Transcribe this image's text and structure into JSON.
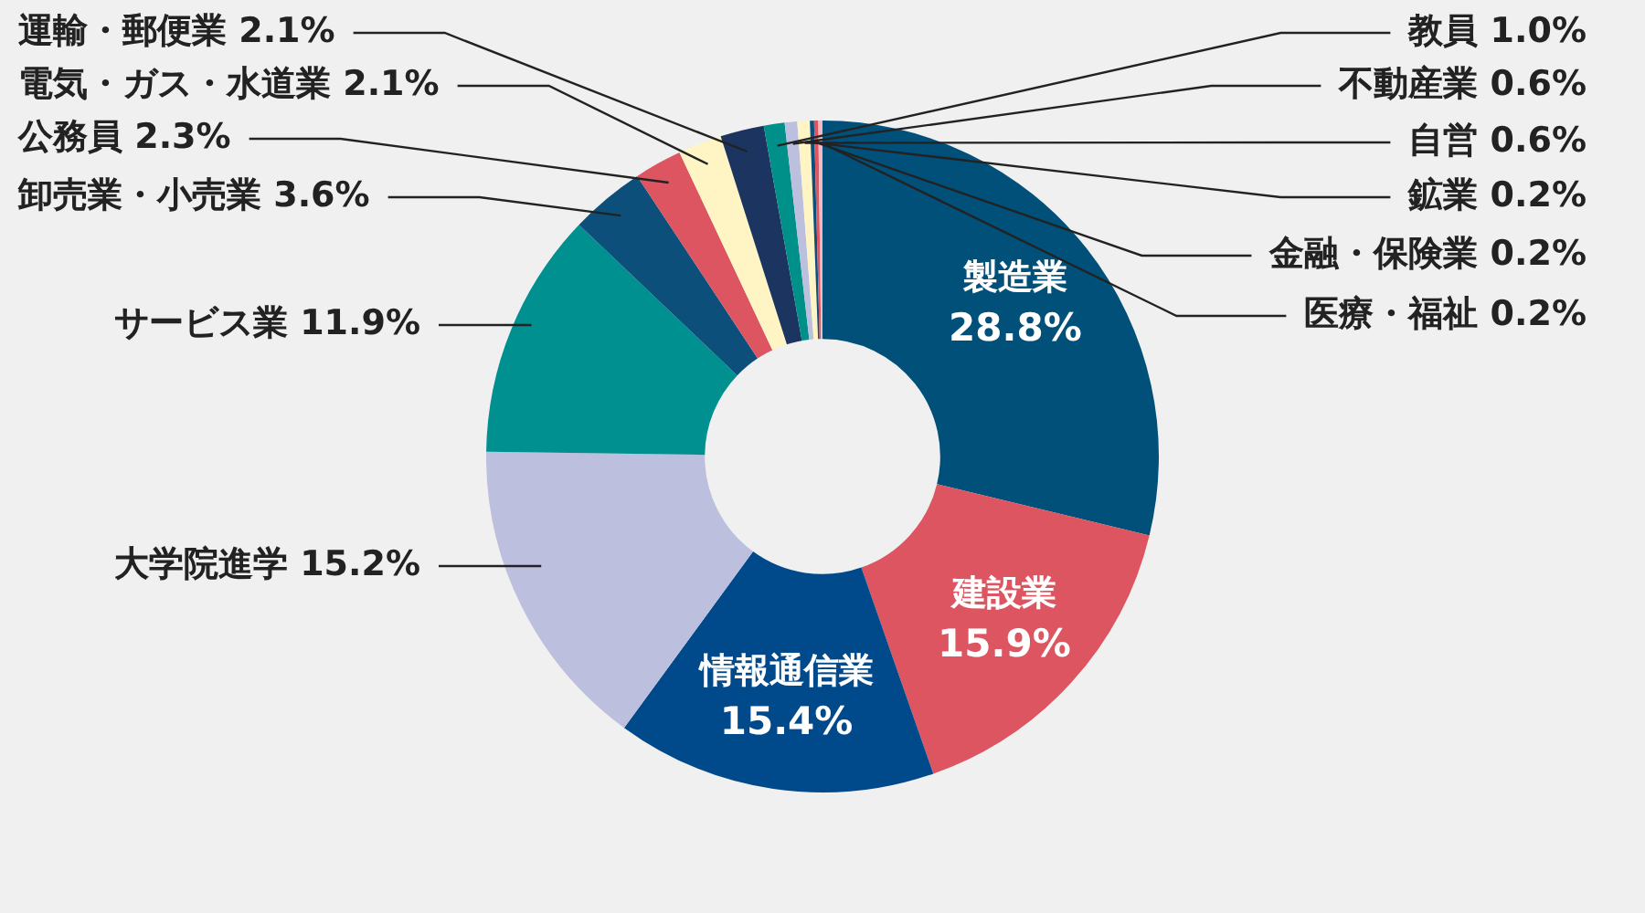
{
  "chart_data": {
    "type": "donut",
    "categories": [
      "製造業",
      "建設業",
      "情報通信業",
      "大学院進学",
      "サービス業",
      "卸売業・小売業",
      "公務員",
      "電気・ガス・水道業",
      "運輸・郵便業",
      "教員",
      "不動産業",
      "自営",
      "鉱業",
      "金融・保険業",
      "医療・福祉"
    ],
    "values": [
      28.8,
      15.9,
      15.4,
      15.2,
      11.9,
      3.6,
      2.3,
      2.1,
      2.1,
      1.0,
      0.6,
      0.6,
      0.2,
      0.2,
      0.2
    ],
    "colors": [
      "#00507a",
      "#dc5560",
      "#004a8c",
      "#bcbfde",
      "#009090",
      "#0b4f7a",
      "#dc5560",
      "#fff5c4",
      "#1b3560",
      "#00908a",
      "#bcbfde",
      "#fff5c4",
      "#0b4f7a",
      "#dc5560",
      "#f4b8c0"
    ],
    "value_labels": [
      "28.8%",
      "15.9%",
      "15.4%",
      "15.2%",
      "11.9%",
      "3.6%",
      "2.3%",
      "2.1%",
      "2.1%",
      "1.0%",
      "0.6%",
      "0.6%",
      "0.2%",
      "0.2%",
      "0.2%"
    ],
    "legend": false
  }
}
